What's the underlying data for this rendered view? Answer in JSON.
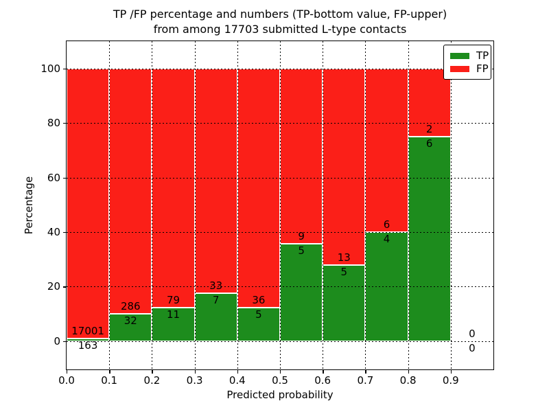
{
  "figure": {
    "title_line1": "TP /FP percentage and numbers (TP-bottom value, FP-upper)",
    "title_line2": "from among 17703 submitted L-type contacts",
    "background_color": "#ffffff"
  },
  "chart_data": {
    "type": "bar",
    "stacked": true,
    "normalized": "each bin scaled so TP%+FP% = 100",
    "title": "TP /FP percentage and numbers (TP-bottom value, FP-upper) from among 17703 submitted L-type contacts",
    "total_contacts": 17703,
    "xlabel": "Predicted probability",
    "ylabel": "Percentage",
    "xlim": [
      0.0,
      1.0
    ],
    "ylim": [
      -10.4,
      110.0
    ],
    "x_ticks": [
      "0.0",
      "0.1",
      "0.2",
      "0.3",
      "0.4",
      "0.5",
      "0.6",
      "0.7",
      "0.8",
      "0.9"
    ],
    "y_ticks": [
      0,
      20,
      40,
      60,
      80,
      100
    ],
    "grid": "dotted black on both axes",
    "bar_edge_color": "#ffffff",
    "tp_color": "#1d8c1d",
    "fp_color": "#fb1f18",
    "legend": {
      "position": "upper right",
      "entries": [
        {
          "label": "TP",
          "color": "#1d8c1d"
        },
        {
          "label": "FP",
          "color": "#fb1f18"
        }
      ]
    },
    "bins": [
      {
        "x0": 0.0,
        "x1": 0.1,
        "tp": 163,
        "fp": 17001,
        "tp_percent": 0.95
      },
      {
        "x0": 0.1,
        "x1": 0.2,
        "tp": 32,
        "fp": 286,
        "tp_percent": 10.06
      },
      {
        "x0": 0.2,
        "x1": 0.3,
        "tp": 11,
        "fp": 79,
        "tp_percent": 12.22
      },
      {
        "x0": 0.3,
        "x1": 0.4,
        "tp": 7,
        "fp": 33,
        "tp_percent": 17.5
      },
      {
        "x0": 0.4,
        "x1": 0.5,
        "tp": 5,
        "fp": 36,
        "tp_percent": 12.2
      },
      {
        "x0": 0.5,
        "x1": 0.6,
        "tp": 5,
        "fp": 9,
        "tp_percent": 35.71
      },
      {
        "x0": 0.6,
        "x1": 0.7,
        "tp": 5,
        "fp": 13,
        "tp_percent": 27.78
      },
      {
        "x0": 0.7,
        "x1": 0.8,
        "tp": 4,
        "fp": 6,
        "tp_percent": 40.0
      },
      {
        "x0": 0.8,
        "x1": 0.9,
        "tp": 6,
        "fp": 2,
        "tp_percent": 75.0
      },
      {
        "x0": 0.9,
        "x1": 1.0,
        "tp": 0,
        "fp": 0,
        "tp_percent": 0
      }
    ]
  }
}
